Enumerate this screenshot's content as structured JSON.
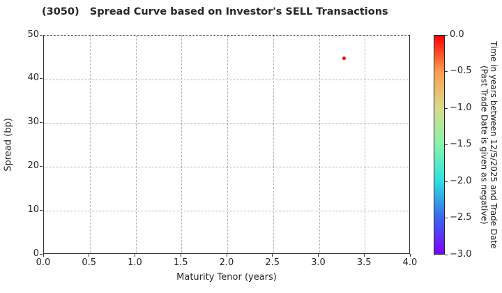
{
  "chart_data": {
    "type": "scatter",
    "title": "(3050)   Spread Curve based on Investor's SELL Transactions",
    "xlabel": "Maturity Tenor (years)",
    "ylabel": "Spread (bp)",
    "xlim": [
      0.0,
      4.0
    ],
    "ylim": [
      0,
      50
    ],
    "x_ticks": [
      "0.0",
      "0.5",
      "1.0",
      "1.5",
      "2.0",
      "2.5",
      "3.0",
      "3.5",
      "4.0"
    ],
    "y_ticks": [
      "0",
      "10",
      "20",
      "30",
      "40",
      "50"
    ],
    "grid": true,
    "grid_style": "dotted",
    "legend_position": "none",
    "points": [
      {
        "x": 3.28,
        "y": 44.6,
        "time_value": 0.0,
        "color": "#ff0000"
      }
    ],
    "colorbar": {
      "label_line1": "Time in years between 12/5/2025 and Trade Date",
      "label_line2": "(Past Trade Date is given as negative)",
      "ticks": [
        "0.0",
        "−0.5",
        "−1.0",
        "−1.5",
        "−2.0",
        "−2.5",
        "−3.0"
      ],
      "vmax": 0.0,
      "vmin": -3.0,
      "gradient": [
        "#ff0000",
        "#fd9e4f",
        "#d6dc8b",
        "#85f5ab",
        "#2ce0e2",
        "#3a66f2",
        "#8000ff"
      ]
    },
    "accent_colors": {
      "point_red": "#ff0000",
      "axis": "#333333",
      "grid": "#a6a6a6"
    }
  }
}
